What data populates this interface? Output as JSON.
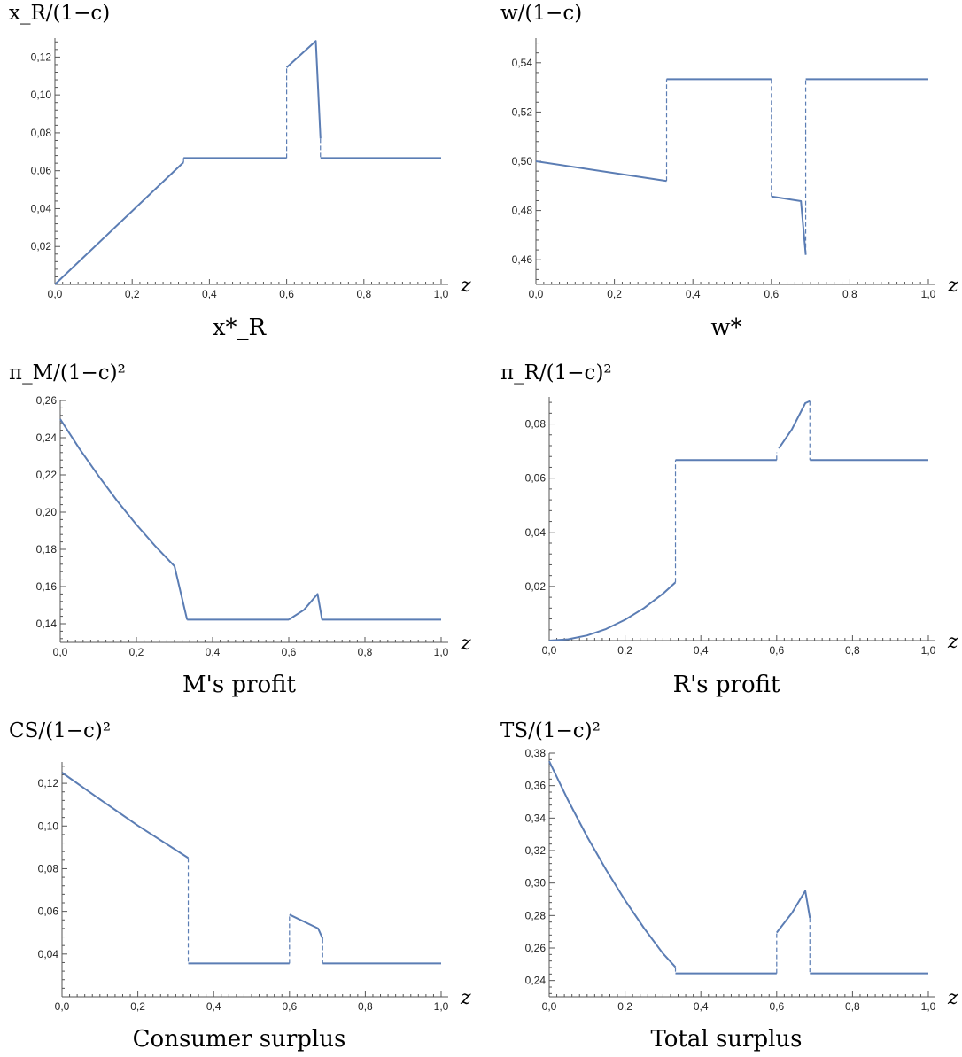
{
  "style": {
    "line_color": "#5b7db4",
    "axis_color": "#555555"
  },
  "chart_data": [
    {
      "type": "line",
      "ylabel_text": "x_R/(1−c)",
      "caption": "x*_R",
      "xlabel": "z",
      "xlim": [
        0,
        1
      ],
      "ylim": [
        0,
        0.13
      ],
      "xticks": [
        "0,0",
        "0,2",
        "0,4",
        "0,6",
        "0,8",
        "1,0"
      ],
      "yticks": [
        "0,02",
        "0,04",
        "0,06",
        "0,08",
        "0,10",
        "0,12"
      ],
      "series": [
        {
          "segments": [
            [
              [
                0,
                0
              ],
              [
                0.333,
                0.0645
              ]
            ],
            [
              [
                0.333,
                0.0667
              ],
              [
                0.6,
                0.0667
              ]
            ],
            [
              [
                0.6,
                0.1145
              ],
              [
                0.6755,
                0.1285
              ],
              [
                0.6875,
                0.077
              ]
            ],
            [
              [
                0.6875,
                0.0667
              ],
              [
                1.0,
                0.0667
              ]
            ]
          ],
          "jumps": [
            [
              0.333,
              0.0645,
              0.0667
            ],
            [
              0.6,
              0.0667,
              0.1145
            ],
            [
              0.6875,
              0.077,
              0.0667
            ]
          ]
        }
      ]
    },
    {
      "type": "line",
      "ylabel_text": "w/(1−c)",
      "caption": "w*",
      "xlabel": "z",
      "xlim": [
        0,
        1
      ],
      "ylim": [
        0.45,
        0.55
      ],
      "xticks": [
        "0,0",
        "0,2",
        "0,4",
        "0,6",
        "0,8",
        "1,0"
      ],
      "yticks": [
        "0,46",
        "0,48",
        "0,50",
        "0,52",
        "0,54"
      ],
      "series": [
        {
          "segments": [
            [
              [
                0,
                0.5
              ],
              [
                0.333,
                0.492
              ]
            ],
            [
              [
                0.333,
                0.5333
              ],
              [
                0.6,
                0.5333
              ]
            ],
            [
              [
                0.6,
                0.4857
              ],
              [
                0.6755,
                0.4838
              ],
              [
                0.6875,
                0.462
              ]
            ],
            [
              [
                0.6875,
                0.5333
              ],
              [
                1.0,
                0.5333
              ]
            ]
          ],
          "jumps": [
            [
              0.333,
              0.492,
              0.5333
            ],
            [
              0.6,
              0.5333,
              0.4857
            ],
            [
              0.6875,
              0.462,
              0.5333
            ]
          ]
        }
      ]
    },
    {
      "type": "line",
      "ylabel_text": "π_M/(1−c)²",
      "caption": "M's profit",
      "xlabel": "z",
      "xlim": [
        0,
        1
      ],
      "ylim": [
        0.13,
        0.26
      ],
      "xticks": [
        "0,0",
        "0,2",
        "0,4",
        "0,6",
        "0,8",
        "1,0"
      ],
      "yticks": [
        "0,14",
        "0,16",
        "0,18",
        "0,20",
        "0,22",
        "0,24",
        "0,26"
      ],
      "series": [
        {
          "segments": [
            [
              [
                0,
                0.25
              ],
              [
                0.05,
                0.2342
              ],
              [
                0.1,
                0.2196
              ],
              [
                0.15,
                0.2059
              ],
              [
                0.2,
                0.1933
              ],
              [
                0.25,
                0.1816
              ],
              [
                0.3,
                0.1709
              ],
              [
                0.333,
                0.1422
              ]
            ],
            [
              [
                0.333,
                0.1422
              ],
              [
                0.6,
                0.1422
              ]
            ],
            [
              [
                0.6,
                0.1422
              ],
              [
                0.64,
                0.1475
              ],
              [
                0.6755,
                0.156
              ],
              [
                0.6875,
                0.1422
              ]
            ],
            [
              [
                0.6875,
                0.1422
              ],
              [
                1.0,
                0.1422
              ]
            ]
          ],
          "jumps": []
        }
      ]
    },
    {
      "type": "line",
      "ylabel_text": "π_R/(1−c)²",
      "caption": "R's profit",
      "xlabel": "z",
      "xlim": [
        0,
        1
      ],
      "ylim": [
        0,
        0.09
      ],
      "xticks": [
        "0,0",
        "0,2",
        "0,4",
        "0,6",
        "0,8",
        "1,0"
      ],
      "yticks": [
        "0,02",
        "0,04",
        "0,06",
        "0,08"
      ],
      "series": [
        {
          "segments": [
            [
              [
                0,
                0
              ],
              [
                0.05,
                0.0005
              ],
              [
                0.1,
                0.0019
              ],
              [
                0.15,
                0.0043
              ],
              [
                0.2,
                0.0077
              ],
              [
                0.25,
                0.012
              ],
              [
                0.3,
                0.0173
              ],
              [
                0.333,
                0.0215
              ]
            ],
            [
              [
                0.333,
                0.0667
              ],
              [
                0.6,
                0.0667
              ]
            ],
            [
              [
                0.6055,
                0.071
              ],
              [
                0.64,
                0.078
              ],
              [
                0.6755,
                0.0877
              ],
              [
                0.6875,
                0.0885
              ]
            ],
            [
              [
                0.6875,
                0.0667
              ],
              [
                1.0,
                0.0667
              ]
            ]
          ],
          "jumps": [
            [
              0.333,
              0.0215,
              0.0667
            ],
            [
              0.6,
              0.0667,
              0.0695
            ],
            [
              0.6875,
              0.0885,
              0.0667
            ]
          ]
        }
      ]
    },
    {
      "type": "line",
      "ylabel_text": "CS/(1−c)²",
      "caption": "Consumer surplus",
      "xlabel": "z",
      "xlim": [
        0,
        1
      ],
      "ylim": [
        0.02,
        0.13
      ],
      "xticks": [
        "0,0",
        "0,2",
        "0,4",
        "0,6",
        "0,8",
        "1,0"
      ],
      "yticks": [
        "0,04",
        "0,06",
        "0,08",
        "0,10",
        "0,12"
      ],
      "series": [
        {
          "segments": [
            [
              [
                0,
                0.125
              ],
              [
                0.1,
                0.1125
              ],
              [
                0.2,
                0.1002
              ],
              [
                0.333,
                0.085
              ]
            ],
            [
              [
                0.333,
                0.0356
              ],
              [
                0.6,
                0.0356
              ]
            ],
            [
              [
                0.6,
                0.0585
              ],
              [
                0.6755,
                0.052
              ],
              [
                0.6875,
                0.0472
              ]
            ],
            [
              [
                0.6875,
                0.0356
              ],
              [
                1.0,
                0.0356
              ]
            ]
          ],
          "jumps": [
            [
              0.333,
              0.085,
              0.0356
            ],
            [
              0.6,
              0.0356,
              0.0585
            ],
            [
              0.6875,
              0.0472,
              0.0356
            ]
          ]
        }
      ]
    },
    {
      "type": "line",
      "ylabel_text": "TS/(1−c)²",
      "caption": "Total surplus",
      "xlabel": "z",
      "xlim": [
        0,
        1
      ],
      "ylim": [
        0.23,
        0.38
      ],
      "xticks": [
        "0,0",
        "0,2",
        "0,4",
        "0,6",
        "0,8",
        "1,0"
      ],
      "yticks": [
        "0,24",
        "0,26",
        "0,28",
        "0,30",
        "0,32",
        "0,34",
        "0,36",
        "0,38"
      ],
      "series": [
        {
          "segments": [
            [
              [
                0,
                0.375
              ],
              [
                0.05,
                0.3509
              ],
              [
                0.1,
                0.3285
              ],
              [
                0.15,
                0.3082
              ],
              [
                0.2,
                0.2894
              ],
              [
                0.25,
                0.2723
              ],
              [
                0.3,
                0.2566
              ],
              [
                0.333,
                0.2482
              ]
            ],
            [
              [
                0.333,
                0.2444
              ],
              [
                0.6,
                0.2444
              ]
            ],
            [
              [
                0.6,
                0.2695
              ],
              [
                0.64,
                0.2815
              ],
              [
                0.6755,
                0.2952
              ],
              [
                0.6875,
                0.2785
              ]
            ],
            [
              [
                0.6875,
                0.2444
              ],
              [
                1.0,
                0.2444
              ]
            ]
          ],
          "jumps": [
            [
              0.333,
              0.2482,
              0.2444
            ],
            [
              0.6,
              0.2444,
              0.2695
            ],
            [
              0.6875,
              0.2785,
              0.2444
            ]
          ]
        }
      ]
    }
  ]
}
